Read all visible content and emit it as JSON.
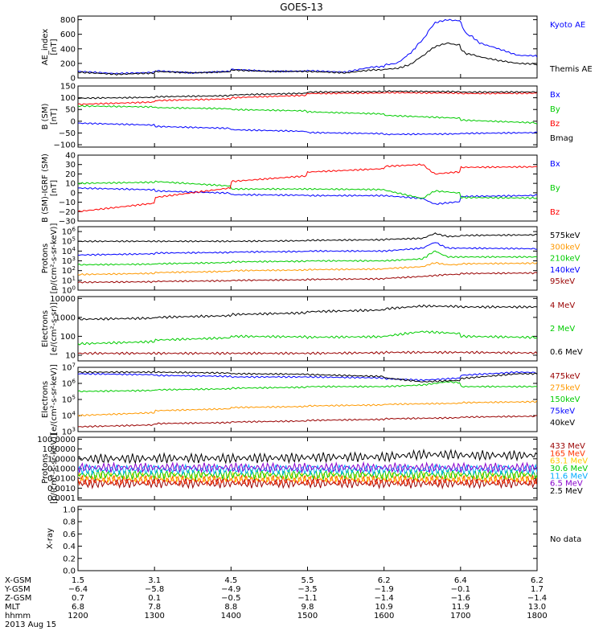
{
  "title": "GOES-13",
  "chart_data": [
    {
      "type": "line",
      "ylabel": "AE_index [nT]",
      "ylim": [
        0,
        850
      ],
      "yticks": [
        0,
        200,
        400,
        600,
        800
      ],
      "tick_labels": [
        "0",
        "200",
        "400",
        "600",
        "800"
      ],
      "log": false,
      "series": [
        {
          "name": "Kyoto AE",
          "color": "#0000ff",
          "x": [
            1200,
            1230,
            1300,
            1330,
            1400,
            1430,
            1500,
            1530,
            1550,
            1600,
            1610,
            1620,
            1630,
            1640,
            1650,
            1655,
            1700,
            1705,
            1710,
            1715,
            1730,
            1745,
            1800
          ],
          "y": [
            90,
            60,
            100,
            70,
            120,
            90,
            100,
            80,
            150,
            180,
            200,
            330,
            520,
            760,
            800,
            790,
            760,
            600,
            560,
            480,
            400,
            310,
            290
          ]
        },
        {
          "name": "Themis AE",
          "color": "#000000",
          "x": [
            1200,
            1230,
            1300,
            1330,
            1400,
            1430,
            1500,
            1530,
            1550,
            1600,
            1610,
            1620,
            1630,
            1640,
            1650,
            1655,
            1700,
            1705,
            1710,
            1715,
            1730,
            1745,
            1800
          ],
          "y": [
            80,
            50,
            90,
            70,
            110,
            90,
            90,
            70,
            110,
            120,
            130,
            180,
            300,
            430,
            480,
            460,
            400,
            330,
            320,
            290,
            240,
            200,
            170
          ]
        }
      ]
    },
    {
      "type": "line",
      "ylabel": "B (SM) [nT]",
      "ylim": [
        -110,
        150
      ],
      "yticks": [
        -100,
        -50,
        0,
        50,
        100,
        150
      ],
      "tick_labels": [
        "−100",
        "−50",
        "0",
        "50",
        "100",
        "150"
      ],
      "log": false,
      "series": [
        {
          "name": "Bx",
          "color": "#0000ff",
          "x": [
            1200,
            1300,
            1400,
            1500,
            1600,
            1700,
            1800
          ],
          "y": [
            -8,
            -22,
            -36,
            -48,
            -56,
            -52,
            -46
          ]
        },
        {
          "name": "By",
          "color": "#00cc00",
          "x": [
            1200,
            1300,
            1400,
            1500,
            1600,
            1700,
            1800
          ],
          "y": [
            65,
            58,
            50,
            40,
            25,
            5,
            -15
          ]
        },
        {
          "name": "Bz",
          "color": "#ff0000",
          "x": [
            1200,
            1300,
            1400,
            1500,
            1600,
            1700,
            1800
          ],
          "y": [
            72,
            88,
            100,
            118,
            122,
            118,
            120
          ]
        },
        {
          "name": "Bmag",
          "color": "#000000",
          "x": [
            1200,
            1300,
            1400,
            1500,
            1600,
            1700,
            1800
          ],
          "y": [
            98,
            104,
            112,
            124,
            128,
            124,
            125
          ]
        }
      ]
    },
    {
      "type": "line",
      "ylabel": "B (SM)-IGRF (SM) [nT]",
      "ylim": [
        -30,
        40
      ],
      "yticks": [
        -30,
        -20,
        -10,
        0,
        10,
        20,
        30,
        40
      ],
      "tick_labels": [
        "−30",
        "−20",
        "−10",
        "0",
        "10",
        "20",
        "30",
        "40"
      ],
      "log": false,
      "series": [
        {
          "name": "Bx",
          "color": "#0000ff",
          "x": [
            1200,
            1300,
            1400,
            1500,
            1600,
            1630,
            1640,
            1700,
            1800
          ],
          "y": [
            5,
            2,
            -2,
            -3,
            -3,
            -6,
            -12,
            -4,
            -2
          ]
        },
        {
          "name": "By",
          "color": "#00cc00",
          "x": [
            1200,
            1300,
            1400,
            1500,
            1600,
            1630,
            1640,
            1700,
            1800
          ],
          "y": [
            10,
            12,
            4,
            4,
            3,
            -6,
            2,
            -5,
            -6
          ]
        },
        {
          "name": "Bz",
          "color": "#ff0000",
          "x": [
            1200,
            1300,
            1400,
            1500,
            1600,
            1630,
            1640,
            1700,
            1800
          ],
          "y": [
            -20,
            -5,
            12,
            22,
            28,
            30,
            20,
            27,
            28
          ]
        }
      ]
    },
    {
      "type": "line",
      "ylabel": "Protons [p/(cm²-s-sr-keV)]",
      "ylim": [
        0,
        6.5
      ],
      "log": true,
      "ytick_exponents": [
        0,
        1,
        2,
        3,
        4,
        5,
        6
      ],
      "yticks_base": "10",
      "series": [
        {
          "name": "575keV",
          "color": "#000000",
          "x": [
            1200,
            1300,
            1400,
            1500,
            1600,
            1630,
            1640,
            1650,
            1700,
            1800
          ],
          "y": [
            5.0,
            5.0,
            5.0,
            5.1,
            5.2,
            5.3,
            5.8,
            5.5,
            5.6,
            5.7
          ]
        },
        {
          "name": "300keV",
          "color": "#ff9900",
          "x": [
            1200,
            1300,
            1400,
            1500,
            1600,
            1630,
            1640,
            1650,
            1700,
            1800
          ],
          "y": [
            1.6,
            1.8,
            2.0,
            2.1,
            2.2,
            2.4,
            2.8,
            2.6,
            2.7,
            2.8
          ]
        },
        {
          "name": "210keV",
          "color": "#00cc00",
          "x": [
            1200,
            1300,
            1400,
            1500,
            1600,
            1630,
            1640,
            1650,
            1700,
            1800
          ],
          "y": [
            2.6,
            2.7,
            2.9,
            3.0,
            3.0,
            3.2,
            4.0,
            3.4,
            3.4,
            3.4
          ]
        },
        {
          "name": "140keV",
          "color": "#0000ff",
          "x": [
            1200,
            1300,
            1400,
            1500,
            1600,
            1630,
            1640,
            1650,
            1700,
            1800
          ],
          "y": [
            3.6,
            3.8,
            3.9,
            4.0,
            4.0,
            4.3,
            4.9,
            4.3,
            4.3,
            4.2
          ]
        },
        {
          "name": "95keV",
          "color": "#990000",
          "x": [
            1200,
            1300,
            1400,
            1500,
            1600,
            1630,
            1640,
            1650,
            1700,
            1800
          ],
          "y": [
            0.8,
            0.9,
            1.0,
            1.1,
            1.2,
            1.4,
            1.5,
            1.6,
            1.7,
            1.8
          ]
        }
      ]
    },
    {
      "type": "line",
      "ylabel": "Electrons [e/(cm²-s-sr)]",
      "ylim": [
        0.7,
        4.1
      ],
      "yticks": [
        1,
        2,
        3,
        4
      ],
      "tick_labels": [
        "10",
        "100",
        "1000",
        "10000"
      ],
      "log": true,
      "series": [
        {
          "name": "4 MeV",
          "color": "#990000",
          "x": [
            1200,
            1300,
            1400,
            1500,
            1600,
            1700,
            1800
          ],
          "y": [
            1.1,
            1.1,
            1.1,
            1.1,
            1.15,
            1.15,
            1.1
          ]
        },
        {
          "name": "2 MeV",
          "color": "#00cc00",
          "x": [
            1200,
            1300,
            1400,
            1500,
            1600,
            1630,
            1700,
            1800
          ],
          "y": [
            1.6,
            1.8,
            2.0,
            1.95,
            2.0,
            2.25,
            2.0,
            1.9
          ]
        },
        {
          "name": "0.6 MeV",
          "color": "#000000",
          "x": [
            1200,
            1300,
            1400,
            1500,
            1600,
            1630,
            1700,
            1800
          ],
          "y": [
            2.9,
            3.0,
            3.15,
            3.3,
            3.45,
            3.6,
            3.55,
            3.55
          ]
        }
      ]
    },
    {
      "type": "line",
      "ylabel": "Electrons [e/(cm²-s-sr-keV)]",
      "ylim": [
        3,
        7
      ],
      "log": true,
      "ytick_exponents": [
        3,
        4,
        5,
        6,
        7
      ],
      "yticks_base": "10",
      "series": [
        {
          "name": "475keV",
          "color": "#990000",
          "x": [
            1200,
            1300,
            1400,
            1500,
            1600,
            1700,
            1800
          ],
          "y": [
            3.3,
            3.5,
            3.6,
            3.7,
            3.8,
            3.9,
            4.0
          ]
        },
        {
          "name": "275keV",
          "color": "#ff9900",
          "x": [
            1200,
            1300,
            1400,
            1500,
            1600,
            1700,
            1800
          ],
          "y": [
            4.0,
            4.3,
            4.5,
            4.6,
            4.7,
            4.8,
            4.9
          ]
        },
        {
          "name": "150keV",
          "color": "#00cc00",
          "x": [
            1200,
            1300,
            1400,
            1500,
            1600,
            1630,
            1650,
            1700,
            1800
          ],
          "y": [
            5.5,
            5.6,
            5.7,
            5.8,
            5.8,
            5.9,
            6.1,
            5.8,
            5.8
          ]
        },
        {
          "name": "75keV",
          "color": "#0000ff",
          "x": [
            1200,
            1300,
            1400,
            1500,
            1600,
            1630,
            1700,
            1745,
            1800
          ],
          "y": [
            6.6,
            6.5,
            6.4,
            6.4,
            6.3,
            6.2,
            6.5,
            6.7,
            6.6
          ]
        },
        {
          "name": "40keV",
          "color": "#000000",
          "x": [
            1200,
            1300,
            1400,
            1500,
            1600,
            1630,
            1700,
            1745,
            1800
          ],
          "y": [
            6.7,
            6.7,
            6.6,
            6.55,
            6.35,
            6.1,
            6.3,
            6.6,
            6.6
          ]
        }
      ]
    },
    {
      "type": "line",
      "ylabel": "Protons [p/(cm²-s-sr-keV)]",
      "ylim": [
        -4.2,
        2.2
      ],
      "yticks": [
        -4,
        -3,
        -2,
        -1,
        0,
        1,
        2
      ],
      "tick_labels": [
        "0.0001",
        "0.0010",
        "0.0100",
        "0.1000",
        "1.0000",
        "10.0000",
        "100.0000"
      ],
      "log": true,
      "series": [
        {
          "name": "433 MeV",
          "color": "#990000",
          "x": [
            1200,
            1300,
            1400,
            1500,
            1600,
            1700,
            1800
          ],
          "y": [
            -2.5,
            -2.5,
            -2.5,
            -2.5,
            -2.5,
            -2.5,
            -2.5
          ]
        },
        {
          "name": "165 MeV",
          "color": "#ff3300",
          "x": [
            1200,
            1300,
            1400,
            1500,
            1600,
            1700,
            1800
          ],
          "y": [
            -2.2,
            -2.2,
            -2.2,
            -2.2,
            -2.2,
            -2.2,
            -2.2
          ]
        },
        {
          "name": "63.1 MeV",
          "color": "#ffcc00",
          "x": [
            1200,
            1300,
            1400,
            1500,
            1600,
            1700,
            1800
          ],
          "y": [
            -1.9,
            -1.9,
            -1.9,
            -1.9,
            -1.9,
            -1.9,
            -1.9
          ]
        },
        {
          "name": "30.6 MeV",
          "color": "#00cc00",
          "x": [
            1200,
            1300,
            1400,
            1500,
            1600,
            1700,
            1800
          ],
          "y": [
            -1.6,
            -1.6,
            -1.6,
            -1.6,
            -1.6,
            -1.6,
            -1.6
          ]
        },
        {
          "name": "11.6 MeV",
          "color": "#00aaff",
          "x": [
            1200,
            1300,
            1400,
            1500,
            1600,
            1700,
            1800
          ],
          "y": [
            -1.1,
            -1.1,
            -1.1,
            -1.1,
            -1.1,
            -1.1,
            -1.1
          ]
        },
        {
          "name": "6.5 MeV",
          "color": "#8800cc",
          "x": [
            1200,
            1300,
            1400,
            1500,
            1600,
            1700,
            1800
          ],
          "y": [
            -0.9,
            -0.9,
            -0.9,
            -0.9,
            -0.9,
            -0.9,
            -0.9
          ]
        },
        {
          "name": "2.5 MeV",
          "color": "#000000",
          "x": [
            1200,
            1300,
            1400,
            1500,
            1600,
            1630,
            1700,
            1800
          ],
          "y": [
            0.0,
            0.05,
            0.05,
            0.15,
            0.2,
            0.45,
            0.35,
            0.35
          ]
        }
      ]
    },
    {
      "type": "line",
      "ylabel": "X-ray",
      "ylim": [
        0,
        1.05
      ],
      "yticks": [
        0,
        0.2,
        0.4,
        0.6,
        0.8,
        1.0
      ],
      "tick_labels": [
        "0.0",
        "0.2",
        "0.4",
        "0.6",
        "0.8",
        "1.0"
      ],
      "log": false,
      "series": [],
      "annotation": "No data"
    }
  ],
  "x_axis": {
    "range": [
      1200,
      1800
    ],
    "tick_positions": [
      1200,
      1300,
      1400,
      1500,
      1600,
      1700,
      1800
    ],
    "rows": [
      {
        "label": "X-GSM",
        "values": [
          "1.5",
          "3.1",
          "4.5",
          "5.5",
          "6.2",
          "6.4",
          "6.2"
        ]
      },
      {
        "label": "Y-GSM",
        "values": [
          "−6.4",
          "−5.8",
          "−4.9",
          "−3.5",
          "−1.9",
          "−0.1",
          "1.7"
        ]
      },
      {
        "label": "Z-GSM",
        "values": [
          "0.7",
          "0.1",
          "−0.5",
          "−1.1",
          "−1.4",
          "−1.6",
          "−1.4"
        ]
      },
      {
        "label": "MLT",
        "values": [
          "6.8",
          "7.8",
          "8.8",
          "9.8",
          "10.9",
          "11.9",
          "13.0"
        ]
      },
      {
        "label": "hhmm",
        "values": [
          "1200",
          "1300",
          "1400",
          "1500",
          "1600",
          "1700",
          "1800"
        ]
      }
    ],
    "date": "2013 Aug 15"
  }
}
